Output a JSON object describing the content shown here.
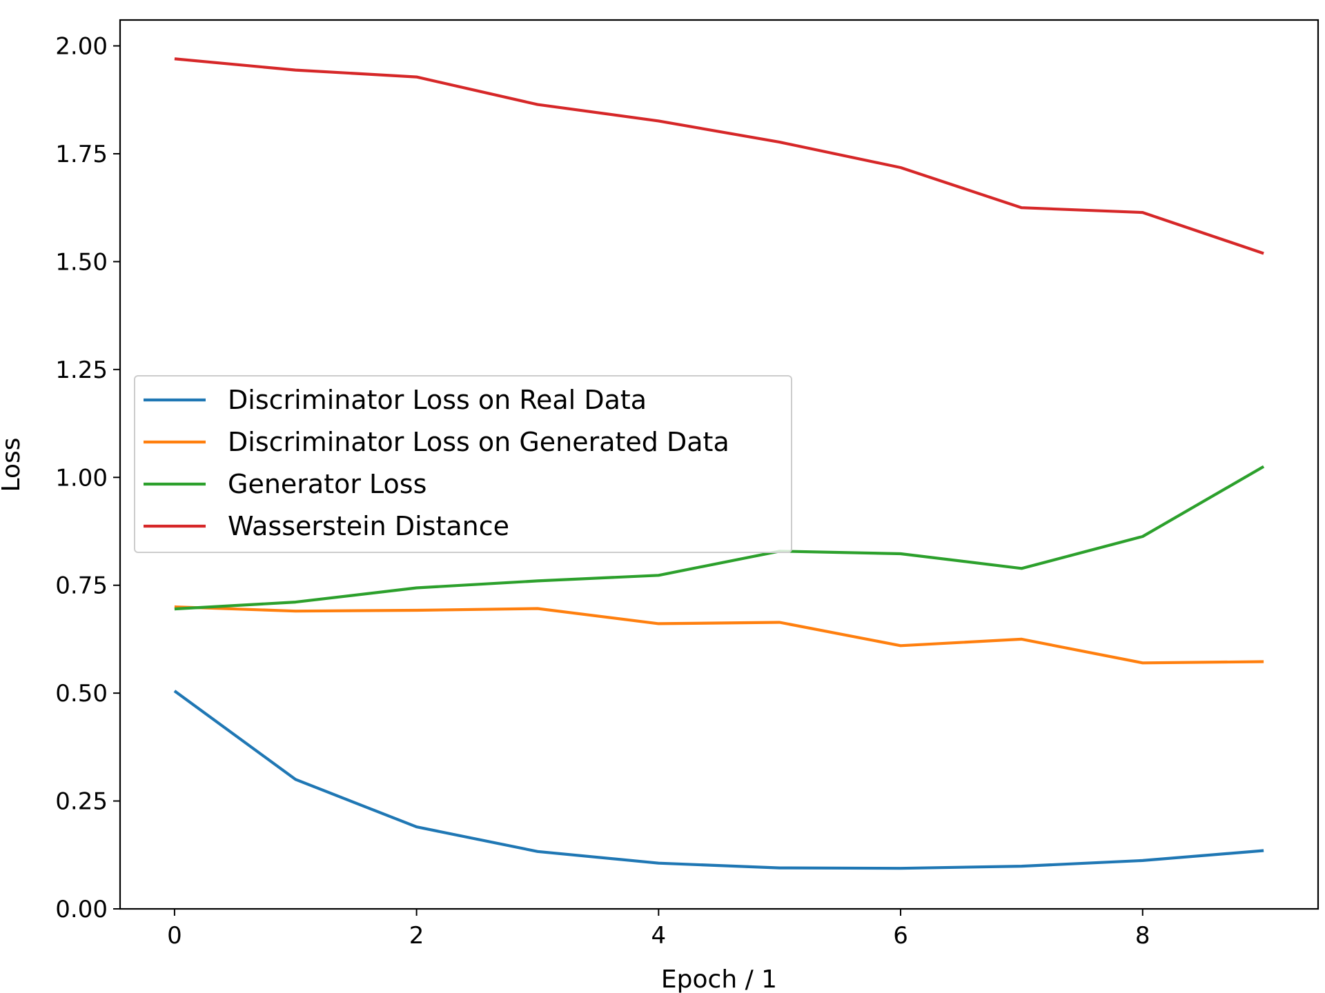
{
  "chart_data": {
    "type": "line",
    "title": "",
    "xlabel": "Epoch / 1",
    "ylabel": "Loss",
    "x": [
      0,
      1,
      2,
      3,
      4,
      5,
      6,
      7,
      8,
      9
    ],
    "xlim": [
      -0.45,
      9.45
    ],
    "ylim": [
      0,
      2.06
    ],
    "xticks": [
      0,
      2,
      4,
      6,
      8
    ],
    "yticks": [
      0.0,
      0.25,
      0.5,
      0.75,
      1.0,
      1.25,
      1.5,
      1.75,
      2.0
    ],
    "xtick_labels": [
      "0",
      "2",
      "4",
      "6",
      "8"
    ],
    "ytick_labels": [
      "0.00",
      "0.25",
      "0.50",
      "0.75",
      "1.00",
      "1.25",
      "1.50",
      "1.75",
      "2.00"
    ],
    "grid": false,
    "legend_position": "center-left",
    "series": [
      {
        "name": "Discriminator Loss on Real Data",
        "color": "#1f77b4",
        "values": [
          0.505,
          0.3,
          0.19,
          0.133,
          0.106,
          0.095,
          0.094,
          0.099,
          0.112,
          0.135
        ]
      },
      {
        "name": "Discriminator Loss on Generated Data",
        "color": "#ff7f0e",
        "values": [
          0.7,
          0.69,
          0.692,
          0.696,
          0.661,
          0.664,
          0.61,
          0.625,
          0.57,
          0.573
        ]
      },
      {
        "name": "Generator Loss",
        "color": "#2ca02c",
        "values": [
          0.695,
          0.711,
          0.744,
          0.76,
          0.773,
          0.829,
          0.823,
          0.789,
          0.863,
          1.025
        ]
      },
      {
        "name": "Wasserstein Distance",
        "color": "#d62728",
        "values": [
          1.97,
          1.944,
          1.928,
          1.864,
          1.826,
          1.777,
          1.718,
          1.625,
          1.614,
          1.519
        ]
      }
    ]
  }
}
